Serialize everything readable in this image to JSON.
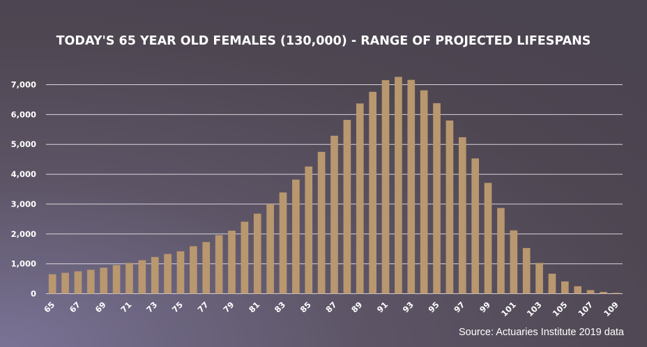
{
  "colors": {
    "bar": "#b9976f",
    "grid": "#d9d4dc",
    "text": "#ffffff"
  },
  "chart_data": {
    "type": "bar",
    "title": "TODAY'S 65 YEAR OLD FEMALES (130,000) - RANGE OF PROJECTED LIFESPANS",
    "source": "Source: Actuaries Institute 2019 data",
    "xlabel": "",
    "ylabel": "",
    "ylim": [
      0,
      7000
    ],
    "grid": true,
    "legend": "none",
    "yticks": [
      0,
      1000,
      2000,
      3000,
      4000,
      5000,
      6000,
      7000
    ],
    "ytick_labels": [
      "0",
      "1,000",
      "2,000",
      "3,000",
      "4,000",
      "5,000",
      "6,000",
      "7,000"
    ],
    "categories": [
      65,
      66,
      67,
      68,
      69,
      70,
      71,
      72,
      73,
      74,
      75,
      76,
      77,
      78,
      79,
      80,
      81,
      82,
      83,
      84,
      85,
      86,
      87,
      88,
      89,
      90,
      91,
      92,
      93,
      94,
      95,
      96,
      97,
      98,
      99,
      100,
      101,
      102,
      103,
      104,
      105,
      106,
      107,
      108,
      109
    ],
    "xtick_labels": [
      "65",
      "67",
      "69",
      "71",
      "73",
      "75",
      "77",
      "79",
      "81",
      "83",
      "85",
      "87",
      "89",
      "91",
      "93",
      "95",
      "97",
      "99",
      "101",
      "103",
      "105",
      "107",
      "109"
    ],
    "values": [
      650,
      700,
      750,
      800,
      870,
      960,
      1030,
      1120,
      1230,
      1330,
      1420,
      1590,
      1730,
      1960,
      2110,
      2410,
      2680,
      3000,
      3390,
      3820,
      4260,
      4750,
      5290,
      5820,
      6370,
      6760,
      7150,
      7260,
      7160,
      6810,
      6380,
      5800,
      5240,
      4530,
      3710,
      2870,
      2120,
      1530,
      1030,
      670,
      410,
      250,
      120,
      60,
      30
    ]
  }
}
